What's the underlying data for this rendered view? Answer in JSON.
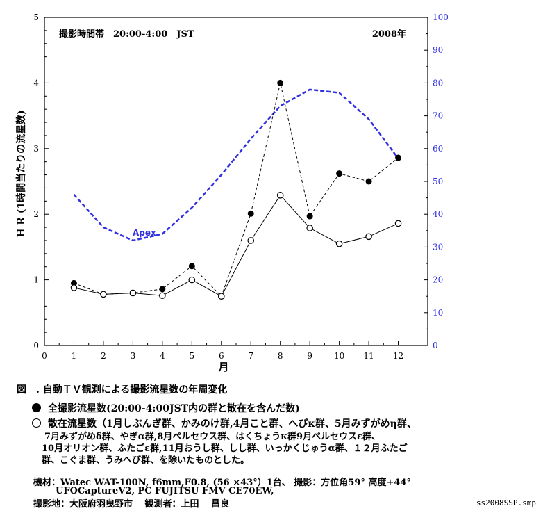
{
  "chart_data": {
    "type": "line",
    "x": [
      1,
      2,
      3,
      4,
      5,
      6,
      7,
      8,
      9,
      10,
      11,
      12
    ],
    "xlim": [
      0,
      13
    ],
    "ylim_left": [
      0,
      5
    ],
    "ylim_right": [
      0,
      100
    ],
    "xlabel": "月",
    "ylabel": "H R (1時間当たりの流星数)",
    "x_ticks": [
      "0",
      "1",
      "2",
      "3",
      "4",
      "5",
      "6",
      "7",
      "8",
      "9",
      "10",
      "11",
      "12"
    ],
    "y_ticks_left": [
      "0",
      "1",
      "2",
      "3",
      "4",
      "5"
    ],
    "y_ticks_right": [
      "0",
      "10",
      "20",
      "30",
      "40",
      "50",
      "60",
      "70",
      "80",
      "90",
      "100"
    ],
    "annotation_left": "撮影時間帯　20:00-4:00　JST",
    "annotation_right": "2008年",
    "apex_label": "Apex",
    "series": [
      {
        "name": "全撮影流星数",
        "style": "dashed-filled-circle",
        "axis": "left",
        "values": [
          0.95,
          0.78,
          0.8,
          0.86,
          1.21,
          0.75,
          2.01,
          4.0,
          1.97,
          2.62,
          2.5,
          2.86
        ]
      },
      {
        "name": "散在流星数",
        "style": "solid-open-circle",
        "axis": "left",
        "values": [
          0.88,
          0.78,
          0.8,
          0.76,
          1.0,
          0.75,
          1.6,
          2.29,
          1.79,
          1.55,
          1.66,
          1.86
        ]
      },
      {
        "name": "Apex",
        "style": "blue-dashed",
        "axis": "right",
        "values": [
          46,
          36,
          32,
          34,
          42,
          52,
          63,
          73,
          78,
          77,
          69,
          57
        ]
      }
    ],
    "colors": {
      "apex": "#3030e0",
      "axis_right": "#3030e0",
      "data": "#000000"
    },
    "grid": false
  },
  "caption": {
    "title": "図　. 自動ＴＶ観測による撮影流星数の年周変化",
    "legend_total": "全撮影流星数(20:00-4:00JST内の群と散在を含んだ数)",
    "legend_sporadic_1": "散在流星数（1月しぶんぎ群、かみのけ群,4月こと群、へびκ群、5月みずがめη群、",
    "legend_sporadic_2": "7月みずがめδ群、やぎα群,8月ペルセウス群、はくちょうκ群9月ペルセウスε群、",
    "legend_sporadic_3": "10月オリオン群、ふたごε群,11月おうし群、しし群、いっかくじゅうα群、１２月ふたご",
    "legend_sporadic_4": "群、こぐま群、うみへび群、を除いたものとした。",
    "equipment_1": "機材：Watec WAT-100N, f6mm,F0.8, (56 ×43°）1台、 撮影：方位角59° 高度+44°",
    "equipment_2": "UFOCaptureV2, PC FUJITSU FMV CE70EW,",
    "location": "撮影地：大阪府羽曳野市　 観測者：上田　 昌良",
    "filename": "ss2008SSP.smp"
  }
}
